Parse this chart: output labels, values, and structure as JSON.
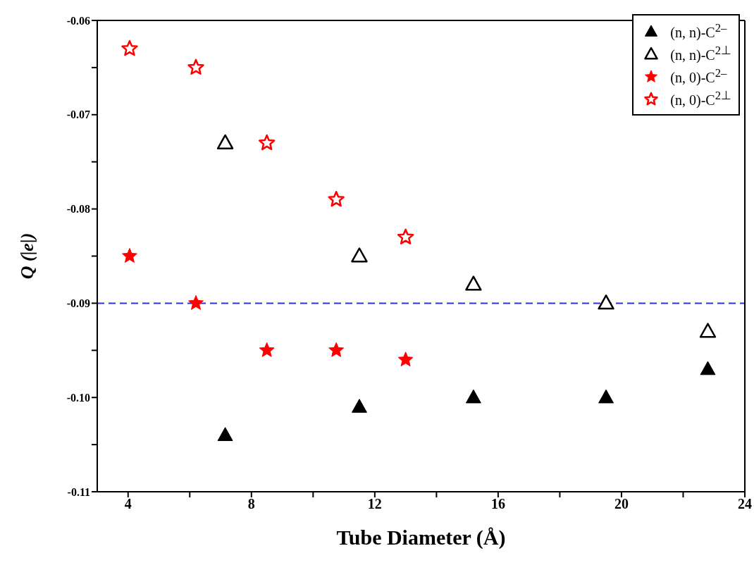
{
  "chart_data": {
    "type": "scatter",
    "xlabel": "Tube Diameter (Å)",
    "ylabel": "Q (|e|)",
    "xlim": [
      3,
      24
    ],
    "xticks": [
      4,
      {
        "value": 6,
        "label": null
      },
      8,
      {
        "value": 10,
        "label": null
      },
      12,
      {
        "value": 14,
        "label": null
      },
      16,
      {
        "value": 18,
        "label": null
      },
      20,
      {
        "value": 22,
        "label": null
      },
      24
    ],
    "ylim": [
      -0.11,
      -0.06
    ],
    "yticks": [
      {
        "value": -0.11,
        "label": "-0.11"
      },
      {
        "value": -0.105,
        "label": null
      },
      {
        "value": -0.1,
        "label": "-0.10"
      },
      {
        "value": -0.095,
        "label": null
      },
      {
        "value": -0.09,
        "label": "-0.09"
      },
      {
        "value": -0.085,
        "label": null
      },
      {
        "value": -0.08,
        "label": "-0.08"
      },
      {
        "value": -0.075,
        "label": null
      },
      {
        "value": -0.07,
        "label": "-0.07"
      },
      {
        "value": -0.065,
        "label": null
      },
      {
        "value": -0.06,
        "label": "-0.06"
      }
    ],
    "grid": false,
    "legend": "top right",
    "series": [
      {
        "name": "(n, n)-C$^{2–}$",
        "color": "#000000",
        "marker": "triangle",
        "x": [
          7.15,
          11.5,
          15.2,
          19.5,
          22.8
        ],
        "values": [
          -0.104,
          -0.101,
          -0.1,
          -0.1,
          -0.097
        ]
      },
      {
        "name": "(n, n)-C$^{2⊥}$",
        "color": "#000000",
        "marker": "triangle-open",
        "x": [
          7.15,
          11.5,
          15.2,
          19.5,
          22.8
        ],
        "values": [
          -0.073,
          -0.085,
          -0.088,
          -0.09,
          -0.093
        ]
      },
      {
        "name": "(n, 0)-C$^{2–}$",
        "color": "#ff0000",
        "marker": "star",
        "x": [
          4.05,
          6.2,
          8.5,
          10.75,
          13.0
        ],
        "values": [
          -0.085,
          -0.09,
          -0.095,
          -0.095,
          -0.096
        ]
      },
      {
        "name": "(n, 0)-C$^{2⊥}$",
        "color": "#ff0000",
        "marker": "star-open",
        "x": [
          4.05,
          6.2,
          8.5,
          10.75,
          13.0
        ],
        "values": [
          -0.063,
          -0.065,
          -0.073,
          -0.079,
          -0.083
        ]
      }
    ],
    "ref_lines": [
      {
        "axis": "y",
        "value": -0.09,
        "color": "#3333cc",
        "line_style": "dashed"
      }
    ]
  }
}
